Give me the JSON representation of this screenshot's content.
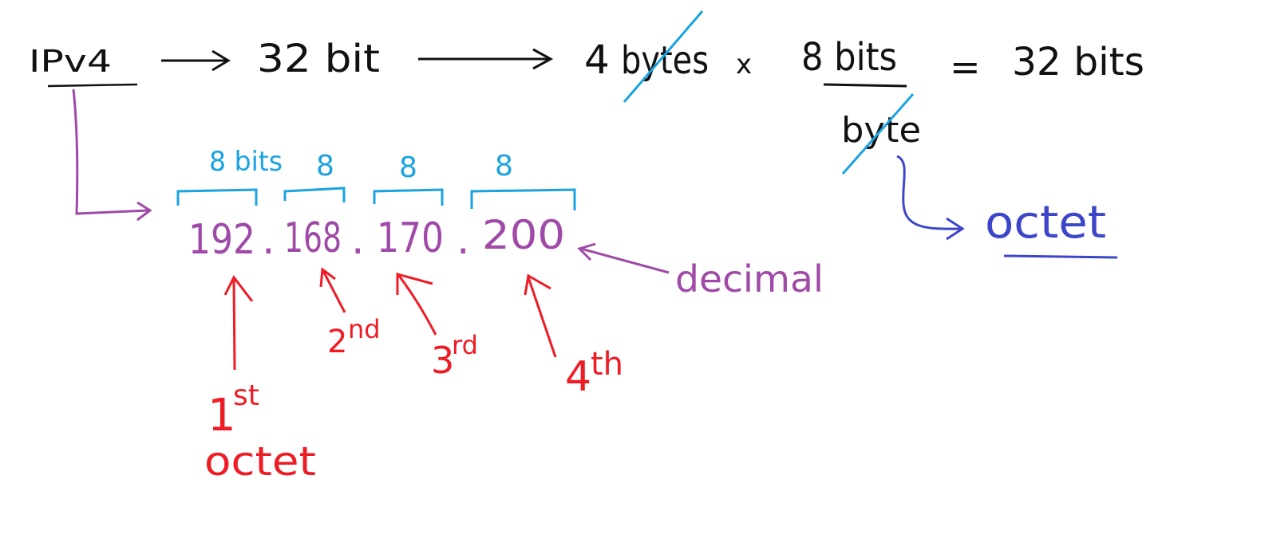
{
  "colors": {
    "ink": "#111111",
    "bits": "#1aa3e0",
    "address": "#a04aa8",
    "octet_labels": "#ee1c24",
    "octet_term": "#3d46c8"
  },
  "top_line": {
    "protocol": "IPv4",
    "size": "32 bit",
    "bytes_count": "4",
    "bytes_word": "bytes",
    "times": "x",
    "numerator": "8 bits",
    "denominator": "byte",
    "equals": "=",
    "result": "32 bits"
  },
  "octet_term": "octet",
  "bit_labels": [
    "8 bits",
    "8",
    "8",
    "8"
  ],
  "address": {
    "octets": [
      "192",
      "168",
      "170",
      "200"
    ],
    "separator": "."
  },
  "decimal_label": "decimal",
  "octet_labels": [
    {
      "ordinal": "1",
      "suffix": "st",
      "extra": "octet"
    },
    {
      "ordinal": "2",
      "suffix": "nd"
    },
    {
      "ordinal": "3",
      "suffix": "rd"
    },
    {
      "ordinal": "4",
      "suffix": "th"
    }
  ]
}
